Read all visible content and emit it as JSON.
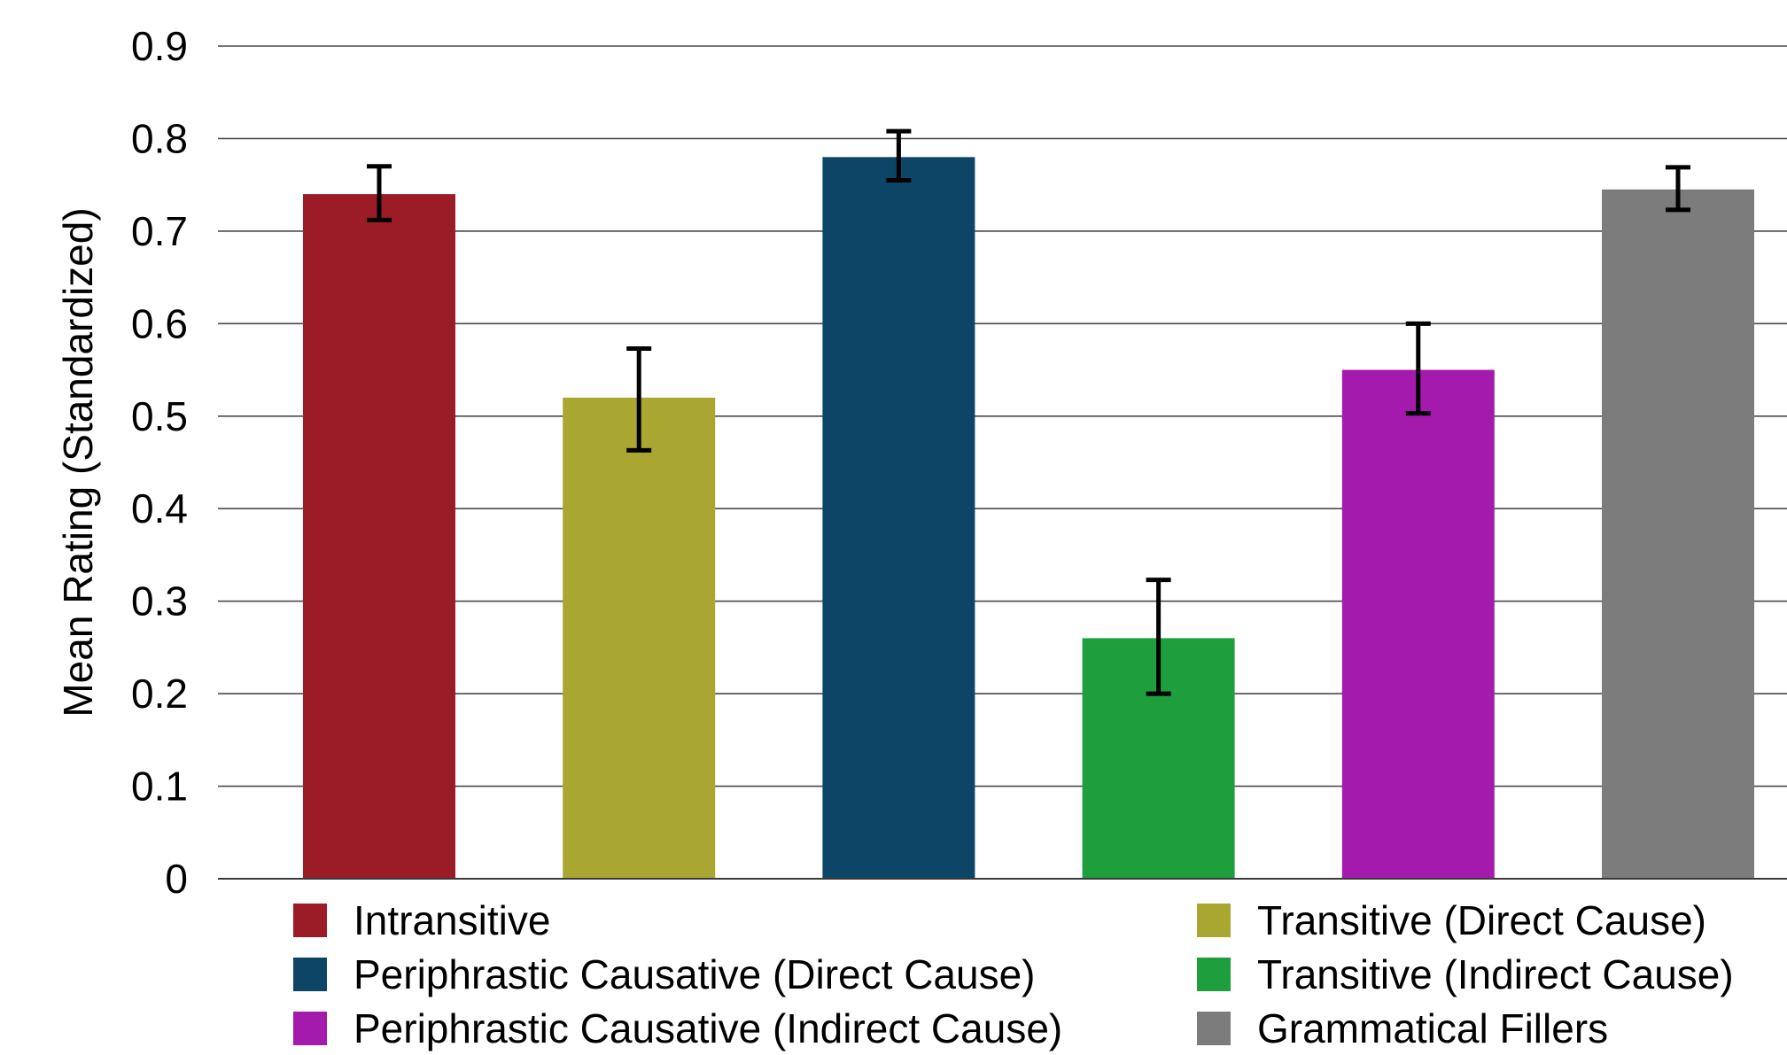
{
  "chart_data": {
    "type": "bar",
    "title": "",
    "xlabel": "",
    "ylabel": "Mean Rating (Standardized)",
    "ylim": [
      0,
      0.9
    ],
    "yticks": [
      "0",
      "0.1",
      "0.2",
      "0.3",
      "0.4",
      "0.5",
      "0.6",
      "0.7",
      "0.8",
      "0.9"
    ],
    "grid": true,
    "legend_position": "bottom",
    "categories": [
      "Intransitive",
      "Transitive (Direct Cause)",
      "Periphrastic Causative (Direct Cause)",
      "Transitive (Indirect Cause)",
      "Periphrastic Causative (Indirect Cause)",
      "Grammatical Fillers"
    ],
    "values": [
      0.74,
      0.52,
      0.78,
      0.26,
      0.55,
      0.745
    ],
    "error_low": [
      0.712,
      0.463,
      0.755,
      0.2,
      0.503,
      0.723
    ],
    "error_high": [
      0.77,
      0.573,
      0.808,
      0.323,
      0.6,
      0.769
    ],
    "colors": [
      "#9b1c26",
      "#aaa632",
      "#0c4566",
      "#1e9e3d",
      "#a41aad",
      "#7c7c7c"
    ]
  },
  "legend": {
    "left": [
      {
        "label": "Intransitive",
        "color": "#9b1c26"
      },
      {
        "label": "Periphrastic Causative (Direct Cause)",
        "color": "#0c4566"
      },
      {
        "label": "Periphrastic Causative (Indirect Cause)",
        "color": "#a41aad"
      }
    ],
    "right": [
      {
        "label": "Transitive (Direct Cause)",
        "color": "#aaa632"
      },
      {
        "label": "Transitive (Indirect Cause)",
        "color": "#1e9e3d"
      },
      {
        "label": "Grammatical Fillers",
        "color": "#7c7c7c"
      }
    ]
  }
}
